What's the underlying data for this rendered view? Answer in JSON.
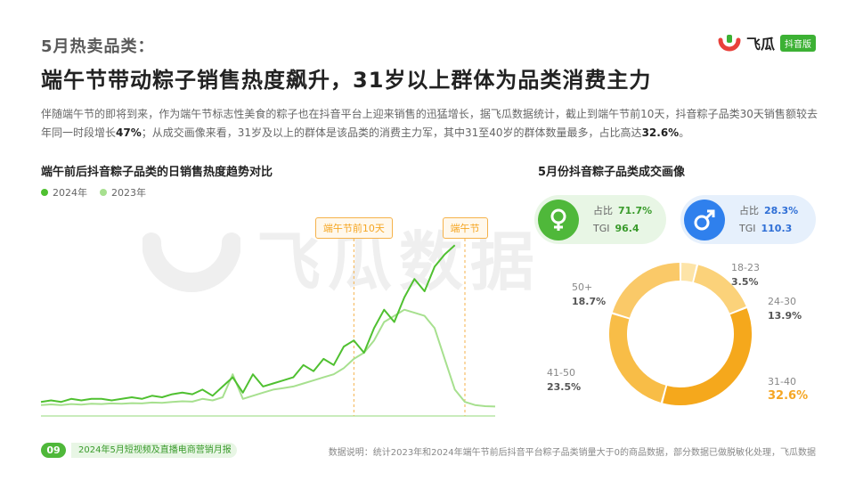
{
  "header": {
    "kicker": "5月热卖品类：",
    "headline": "端午节带动粽子销售热度飙升，31岁以上群体为品类消费主力",
    "brand_name": "飞瓜",
    "brand_badge": "抖音版"
  },
  "description": {
    "part1": "伴随端午节的即将到来，作为端午节标志性美食的粽子也在抖音平台上迎来销售的迅猛增长，据飞瓜数据统计，截止到端午节前10天，抖音粽子品类30天销售额较去年同一时段增长",
    "highlight1": "47%",
    "part2": "；从成交画像来看，31岁及以上的群体是该品类的消费主力军，其中31至40岁的群体数量最多，占比高达",
    "highlight2": "32.6%",
    "part3": "。"
  },
  "watermark": "飞瓜数据",
  "left_chart": {
    "title": "端午前后抖音粽子品类的日销售热度趋势对比",
    "tag1": "端午节前10天",
    "tag2": "端午节"
  },
  "right_chart": {
    "title": "5月份抖音粽子品类成交画像",
    "female": {
      "share_label": "占比",
      "share": "71.7%",
      "tgi_label": "TGI",
      "tgi": "96.4"
    },
    "male": {
      "share_label": "占比",
      "share": "28.3%",
      "tgi_label": "TGI",
      "tgi": "110.3"
    }
  },
  "chart_data": [
    {
      "type": "line",
      "title": "端午前后抖音粽子品类的日销售热度趋势对比",
      "xlabel": "",
      "ylabel": "",
      "grid": false,
      "legend": "top-left",
      "x": [
        1,
        2,
        3,
        4,
        5,
        6,
        7,
        8,
        9,
        10,
        11,
        12,
        13,
        14,
        15,
        16,
        17,
        18,
        19,
        20,
        21,
        22,
        23,
        24,
        25,
        26,
        27,
        28,
        29,
        30,
        31,
        32,
        33,
        34,
        35,
        36,
        37,
        38,
        39,
        40,
        41,
        42,
        43,
        44,
        45,
        46
      ],
      "annotations": [
        {
          "label": "端午节前10天",
          "x": 32
        },
        {
          "label": "端午节",
          "x": 43
        }
      ],
      "series": [
        {
          "name": "2024年",
          "color": "#4fc030",
          "values": [
            4,
            4.5,
            4,
            5,
            4.5,
            5,
            5,
            4.5,
            5,
            5.5,
            5,
            6,
            5.5,
            6.5,
            7,
            6.5,
            8,
            6,
            9,
            12,
            7,
            13,
            9,
            10,
            11,
            12,
            16,
            14,
            18,
            16,
            22,
            24,
            20,
            28,
            34,
            30,
            38,
            44,
            40,
            48,
            52,
            55,
            null,
            null,
            null,
            null
          ]
        },
        {
          "name": "2023年",
          "color": "#a7e08f",
          "values": [
            3,
            3.2,
            3,
            3.3,
            3.1,
            3.4,
            3.3,
            3.5,
            3.4,
            3.6,
            3.5,
            3.8,
            3.7,
            4,
            4.2,
            4.1,
            5,
            4.5,
            5.5,
            13,
            5,
            6,
            7,
            8,
            8.5,
            9,
            10,
            11,
            12,
            13,
            15,
            18,
            20,
            24,
            30,
            32,
            34,
            33,
            32,
            28,
            18,
            8,
            4,
            3,
            2.6,
            2.5
          ]
        }
      ]
    },
    {
      "type": "pie",
      "title": "5月份抖音粽子品类成交画像",
      "categories": [
        "18-23",
        "24-30",
        "31-40",
        "41-50",
        "50+"
      ],
      "values": [
        3.5,
        13.9,
        32.6,
        23.5,
        18.7
      ],
      "labels": [
        "3.5%",
        "13.9%",
        "32.6%",
        "23.5%",
        "18.7%"
      ],
      "colors": [
        "#fde4a8",
        "#fbd27a",
        "#f5a81c",
        "#f8bd47",
        "#fac968"
      ]
    }
  ],
  "footer": {
    "page_number": "09",
    "report_name": "2024年5月短视频及直播电商营销月报",
    "note": "数据说明：统计2023年和2024年端午节前后抖音平台粽子品类销量大于0的商品数据，部分数据已做脱敏化处理，飞瓜数据"
  }
}
